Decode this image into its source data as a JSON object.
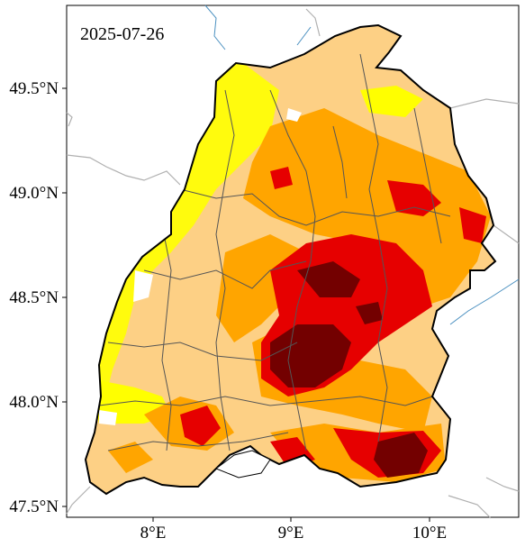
{
  "map": {
    "date": "2025-07-26",
    "lat_labels": [
      "49.5°N",
      "49.0°N",
      "48.5°N",
      "48.0°N",
      "47.5°N"
    ],
    "lon_labels": [
      "8°E",
      "9°E",
      "10°E"
    ],
    "legend_classes": [
      {
        "name": "class-1",
        "color": "#ffff00"
      },
      {
        "name": "class-2",
        "color": "#fdd085"
      },
      {
        "name": "class-3",
        "color": "#ffa500"
      },
      {
        "name": "class-4",
        "color": "#e60000"
      },
      {
        "name": "class-5",
        "color": "#730000"
      }
    ],
    "colors": {
      "background": "#ffffff",
      "state_outline": "#000000",
      "district_borders": "#555555",
      "rivers": "#4a90c0",
      "country_borders": "#b0b0b0"
    }
  }
}
